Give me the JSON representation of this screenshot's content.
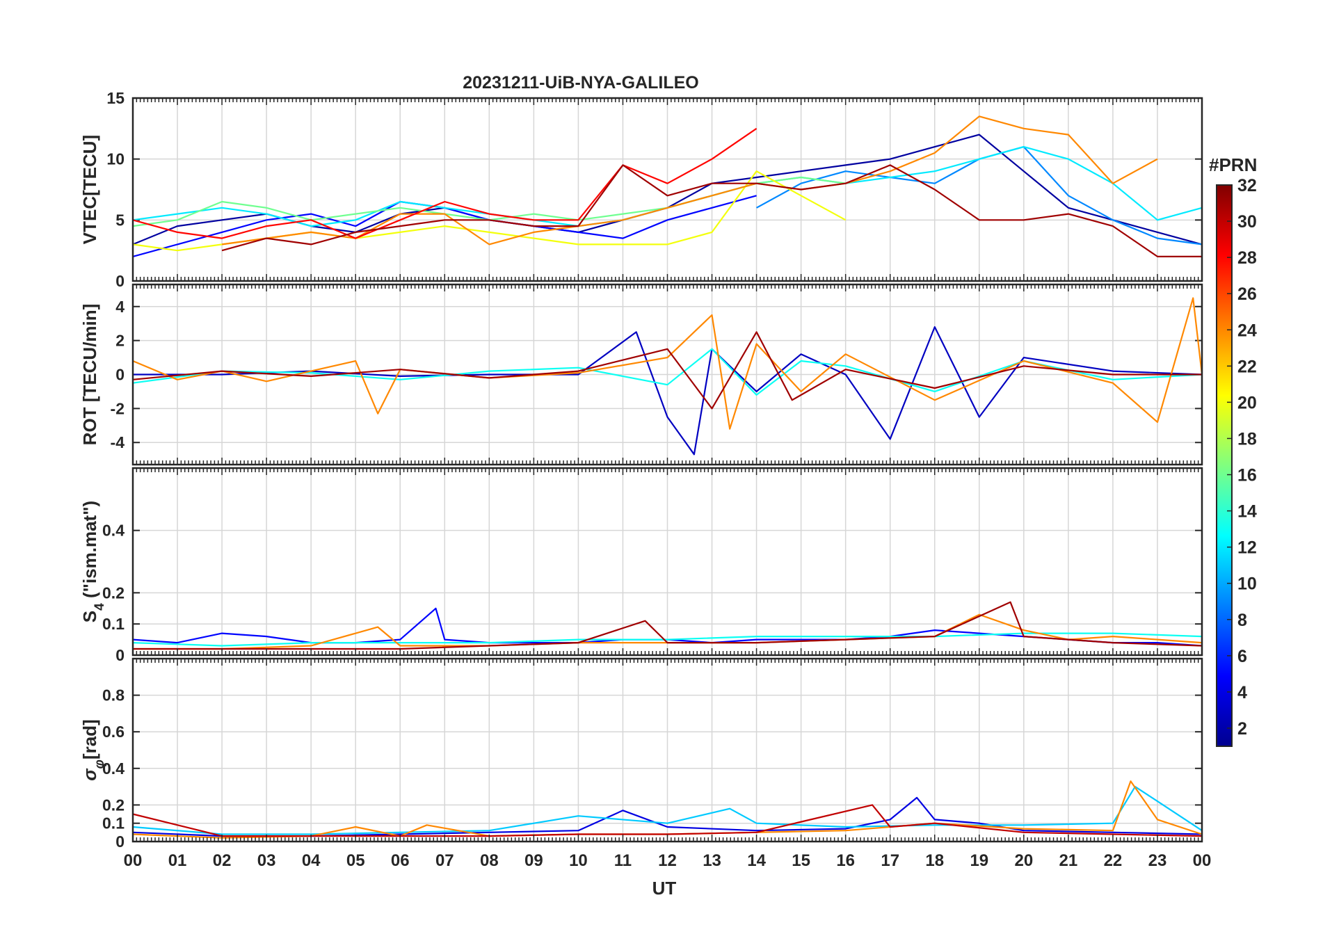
{
  "chart_data": {
    "type": "line",
    "title": "20231211-UiB-NYA-GALILEO",
    "xlabel": "UT",
    "x_ticks": [
      "00",
      "01",
      "02",
      "03",
      "04",
      "05",
      "06",
      "07",
      "08",
      "09",
      "10",
      "11",
      "12",
      "13",
      "14",
      "15",
      "16",
      "17",
      "18",
      "19",
      "20",
      "21",
      "22",
      "23",
      "00"
    ],
    "xlim_hours": [
      0,
      24
    ],
    "colorbar": {
      "label": "#PRN",
      "range": [
        1,
        32
      ],
      "ticks": [
        "2",
        "4",
        "6",
        "8",
        "10",
        "12",
        "14",
        "16",
        "18",
        "20",
        "22",
        "24",
        "26",
        "28",
        "30",
        "32"
      ],
      "colormap": "jet"
    },
    "panels": [
      {
        "id": "vtec",
        "ylabel": "VTEC[TECU]",
        "ylim": [
          0,
          15
        ],
        "yticks": [
          "0",
          "5",
          "10",
          "15"
        ],
        "series": [
          {
            "prn": 2,
            "x": [
              0,
              1,
              2,
              3,
              4,
              5,
              6,
              7,
              8,
              9,
              10,
              11,
              12,
              13,
              14,
              15,
              16,
              17,
              18,
              19,
              20,
              21,
              22,
              23,
              24
            ],
            "y": [
              3.0,
              4.5,
              5.0,
              5.5,
              4.5,
              4.0,
              5.5,
              6.0,
              5.0,
              4.5,
              4.0,
              5.0,
              6.0,
              8.0,
              8.5,
              9.0,
              9.5,
              10.0,
              11.0,
              12.0,
              9.0,
              6.0,
              5.0,
              4.0,
              3.0
            ]
          },
          {
            "prn": 5,
            "x": [
              0,
              1,
              2,
              3,
              4,
              5,
              6,
              7,
              8,
              9,
              10,
              11,
              12,
              13,
              14
            ],
            "y": [
              2.0,
              3.0,
              4.0,
              5.0,
              5.5,
              4.5,
              6.5,
              6.0,
              5.0,
              4.5,
              4.0,
              3.5,
              5.0,
              6.0,
              7.0
            ]
          },
          {
            "prn": 9,
            "x": [
              14,
              15,
              16,
              17,
              18,
              19,
              20,
              21,
              22,
              23,
              24
            ],
            "y": [
              6.0,
              8.0,
              9.0,
              8.5,
              8.0,
              10.0,
              11.0,
              7.0,
              5.0,
              3.5,
              3.0
            ]
          },
          {
            "prn": 12,
            "x": [
              0,
              1,
              2,
              3,
              4,
              5,
              6,
              7,
              8,
              9,
              10,
              11,
              12,
              13,
              14,
              15,
              16,
              17,
              18,
              19,
              20,
              21,
              22,
              23,
              24
            ],
            "y": [
              5.0,
              5.5,
              6.0,
              5.5,
              4.5,
              5.0,
              6.5,
              6.0,
              5.5,
              5.0,
              4.5,
              5.0,
              6.0,
              7.0,
              8.0,
              8.5,
              8.0,
              8.5,
              9.0,
              10.0,
              11.0,
              10.0,
              8.0,
              5.0,
              6.0
            ]
          },
          {
            "prn": 16,
            "x": [
              0,
              1,
              2,
              3,
              4,
              5,
              6,
              7,
              8,
              9,
              10,
              11,
              12,
              13,
              14,
              15,
              16
            ],
            "y": [
              4.5,
              5.0,
              6.5,
              6.0,
              5.0,
              5.5,
              6.0,
              5.5,
              5.0,
              5.5,
              5.0,
              5.5,
              6.0,
              7.0,
              8.0,
              8.5,
              8.0
            ]
          },
          {
            "prn": 20,
            "x": [
              0,
              1,
              2,
              3,
              4,
              5,
              6,
              7,
              8,
              9,
              10,
              11,
              12,
              13,
              14,
              15,
              16
            ],
            "y": [
              3.0,
              2.5,
              3.0,
              3.5,
              4.0,
              3.5,
              4.0,
              4.5,
              4.0,
              3.5,
              3.0,
              3.0,
              3.0,
              4.0,
              9.0,
              7.0,
              5.0
            ]
          },
          {
            "prn": 24,
            "x": [
              2,
              3,
              4,
              5,
              6,
              7,
              8,
              9,
              10,
              11,
              12,
              13,
              14,
              15,
              16,
              17,
              18,
              19,
              20,
              21,
              22,
              23
            ],
            "y": [
              3.0,
              3.5,
              4.0,
              3.5,
              5.5,
              5.5,
              3.0,
              4.0,
              4.5,
              5.0,
              6.0,
              7.0,
              8.0,
              7.5,
              8.0,
              9.0,
              10.5,
              13.5,
              12.5,
              12.0,
              8.0,
              10.0
            ]
          },
          {
            "prn": 28,
            "x": [
              0,
              1,
              2,
              3,
              4,
              5,
              6,
              7,
              8,
              9,
              10,
              11,
              12,
              13,
              14
            ],
            "y": [
              5.0,
              4.0,
              3.5,
              4.5,
              5.0,
              3.5,
              5.0,
              6.5,
              5.5,
              5.0,
              5.0,
              9.5,
              8.0,
              10.0,
              12.5
            ]
          },
          {
            "prn": 31,
            "x": [
              2,
              3,
              4,
              5,
              6,
              7,
              8,
              9,
              10,
              11,
              12,
              13,
              14,
              15,
              16,
              17,
              18,
              19,
              20,
              21,
              22,
              23,
              24
            ],
            "y": [
              2.5,
              3.5,
              3.0,
              4.0,
              4.5,
              5.0,
              5.0,
              4.5,
              4.5,
              9.5,
              7.0,
              8.0,
              8.0,
              7.5,
              8.0,
              9.5,
              7.5,
              5.0,
              5.0,
              5.5,
              4.5,
              2.0,
              2.0
            ]
          }
        ]
      },
      {
        "id": "rot",
        "ylabel": "ROT [TECU/min]",
        "ylim": [
          -5.3,
          5.3
        ],
        "yticks": [
          "-4",
          "-2",
          "0",
          "2",
          "4"
        ],
        "series": [
          {
            "prn": 3,
            "x": [
              0,
              2,
              4,
              6,
              8,
              10,
              11.3,
              12,
              12.6,
              13,
              14,
              15,
              16,
              17,
              18,
              19,
              20,
              22,
              24
            ],
            "y": [
              0.0,
              0.0,
              0.2,
              -0.1,
              0.0,
              0.0,
              2.5,
              -2.5,
              -4.7,
              1.5,
              -1.0,
              1.2,
              0.0,
              -3.8,
              2.8,
              -2.5,
              1.0,
              0.2,
              0.0
            ]
          },
          {
            "prn": 13,
            "x": [
              0,
              2,
              4,
              6,
              8,
              10,
              12,
              13,
              14,
              15,
              16,
              18,
              20,
              22,
              24
            ],
            "y": [
              -0.5,
              0.2,
              0.1,
              -0.3,
              0.2,
              0.4,
              -0.6,
              1.5,
              -1.2,
              0.8,
              0.5,
              -1.0,
              0.8,
              -0.3,
              0.0
            ]
          },
          {
            "prn": 24,
            "x": [
              0,
              1,
              2,
              3,
              4,
              5,
              5.5,
              6,
              8,
              10,
              12,
              13,
              13.4,
              14,
              15,
              16,
              18,
              20,
              22,
              23,
              23.8,
              24
            ],
            "y": [
              0.8,
              -0.3,
              0.2,
              -0.4,
              0.2,
              0.8,
              -2.3,
              0.3,
              -0.2,
              0.1,
              1.0,
              3.5,
              -3.2,
              1.8,
              -1.0,
              1.2,
              -1.5,
              0.8,
              -0.5,
              -2.8,
              4.5,
              0.0
            ]
          },
          {
            "prn": 31,
            "x": [
              0,
              2,
              4,
              6,
              8,
              10,
              12,
              13,
              14,
              14.8,
              16,
              18,
              20,
              22,
              24
            ],
            "y": [
              -0.3,
              0.2,
              -0.1,
              0.3,
              -0.2,
              0.2,
              1.5,
              -2.0,
              2.5,
              -1.5,
              0.3,
              -0.8,
              0.5,
              0.0,
              0.0
            ]
          }
        ]
      },
      {
        "id": "s4",
        "ylabel": "S",
        "ylabel_sub": "4",
        "ylabel_rest": " (\"ism.mat\")",
        "ylim": [
          0,
          0.6
        ],
        "yticks": [
          "0",
          "0.1",
          "0.2",
          "0.4"
        ],
        "series": [
          {
            "prn": 5,
            "x": [
              0,
              1,
              2,
              3,
              4,
              5,
              6,
              6.8,
              7,
              8,
              9,
              10,
              11,
              12,
              13,
              14,
              15,
              16,
              17,
              18,
              19,
              20,
              21,
              22,
              23,
              24
            ],
            "y": [
              0.05,
              0.04,
              0.07,
              0.06,
              0.04,
              0.04,
              0.05,
              0.15,
              0.05,
              0.04,
              0.04,
              0.04,
              0.05,
              0.05,
              0.04,
              0.05,
              0.05,
              0.05,
              0.06,
              0.08,
              0.07,
              0.06,
              0.05,
              0.04,
              0.04,
              0.03
            ]
          },
          {
            "prn": 13,
            "x": [
              0,
              2,
              4,
              6,
              8,
              10,
              12,
              14,
              16,
              18,
              20,
              22,
              24
            ],
            "y": [
              0.04,
              0.03,
              0.04,
              0.04,
              0.04,
              0.05,
              0.05,
              0.06,
              0.06,
              0.06,
              0.07,
              0.07,
              0.06
            ]
          },
          {
            "prn": 24,
            "x": [
              0,
              2,
              4,
              5.5,
              6,
              8,
              10,
              12,
              14,
              16,
              18,
              19,
              20,
              21,
              22,
              23,
              24
            ],
            "y": [
              0.02,
              0.02,
              0.03,
              0.09,
              0.03,
              0.03,
              0.04,
              0.04,
              0.04,
              0.05,
              0.06,
              0.13,
              0.08,
              0.05,
              0.06,
              0.05,
              0.04
            ]
          },
          {
            "prn": 31,
            "x": [
              0,
              2,
              4,
              6,
              8,
              10,
              11.5,
              12,
              14,
              16,
              18,
              19.7,
              20,
              22,
              24
            ],
            "y": [
              0.02,
              0.02,
              0.02,
              0.02,
              0.03,
              0.04,
              0.11,
              0.04,
              0.04,
              0.05,
              0.06,
              0.17,
              0.06,
              0.04,
              0.03
            ]
          }
        ]
      },
      {
        "id": "sigma",
        "ylabel": "σ",
        "ylabel_sub": "φ",
        "ylabel_rest": "[rad]",
        "ylim": [
          0,
          1
        ],
        "yticks": [
          "0",
          "0.1",
          "0.2",
          "0.4",
          "0.6",
          "0.8"
        ],
        "series": [
          {
            "prn": 4,
            "x": [
              0,
              2,
              4,
              6,
              8,
              10,
              11,
              12,
              14,
              16,
              17,
              17.6,
              18,
              19,
              20,
              22,
              24
            ],
            "y": [
              0.05,
              0.03,
              0.03,
              0.04,
              0.05,
              0.06,
              0.17,
              0.08,
              0.06,
              0.07,
              0.12,
              0.24,
              0.12,
              0.1,
              0.06,
              0.05,
              0.04
            ]
          },
          {
            "prn": 11,
            "x": [
              0,
              2,
              4,
              6,
              8,
              10,
              12,
              13.4,
              14,
              16,
              18,
              20,
              22,
              22.5,
              23,
              24
            ],
            "y": [
              0.08,
              0.04,
              0.04,
              0.05,
              0.06,
              0.14,
              0.1,
              0.18,
              0.1,
              0.08,
              0.09,
              0.09,
              0.1,
              0.3,
              0.22,
              0.06
            ]
          },
          {
            "prn": 24,
            "x": [
              0,
              2,
              4,
              5,
              6,
              6.6,
              8,
              10,
              12,
              14,
              16,
              18,
              20,
              22,
              22.4,
              23,
              24
            ],
            "y": [
              0.04,
              0.02,
              0.03,
              0.08,
              0.03,
              0.09,
              0.03,
              0.04,
              0.04,
              0.05,
              0.06,
              0.1,
              0.07,
              0.06,
              0.33,
              0.12,
              0.04
            ]
          },
          {
            "prn": 30,
            "x": [
              0,
              2,
              4,
              6,
              8,
              10,
              12,
              14,
              16.6,
              17,
              18,
              20,
              22,
              24
            ],
            "y": [
              0.15,
              0.03,
              0.03,
              0.03,
              0.03,
              0.04,
              0.04,
              0.05,
              0.2,
              0.08,
              0.1,
              0.05,
              0.04,
              0.03
            ]
          }
        ]
      }
    ]
  }
}
